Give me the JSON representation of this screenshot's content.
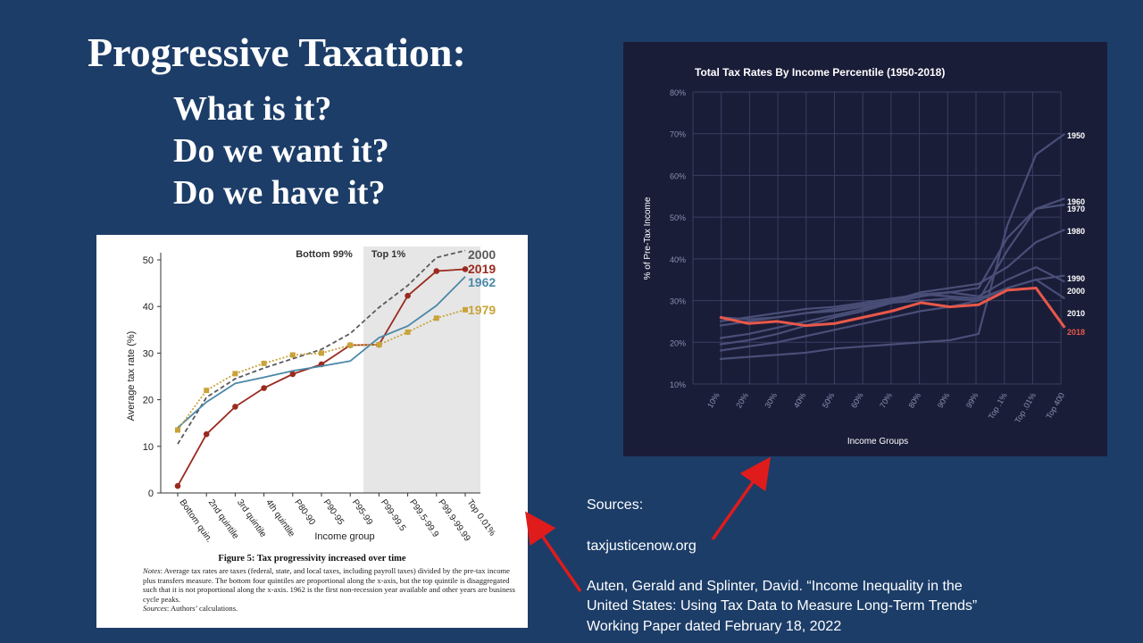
{
  "slide": {
    "title": "Progressive Taxation:",
    "questions": [
      "What is it?",
      "Do we want it?",
      "Do we have it?"
    ]
  },
  "sources": {
    "heading": "Sources:",
    "link": "taxjusticenow.org",
    "citation_lines": [
      "Auten, Gerald and Splinter, David. “Income Inequality in the",
      "United States: Using Tax Data to Measure Long-Term Trends”",
      "Working Paper dated February 18, 2022"
    ]
  },
  "left_figure": {
    "caption_title": "Figure 5: Tax progressivity increased over time",
    "notes_label": "Notes",
    "notes_text": ": Average tax rates are taxes (federal, state, and local taxes, including payroll taxes) divided by the pre-tax income plus transfers measure. The bottom four quintiles are proportional along the x-axis, but the top quintile is disaggregated such that it is not proportional along the x-axis. 1962 is the first non-recession year available and other years are business cycle peaks.",
    "sources_label": "Sources",
    "sources_text": ": Authors’ calculations."
  },
  "colors": {
    "slide_bg": "#1c3d68",
    "y2000": "#5a5a5a",
    "y2019": "#9a2a1e",
    "y1962": "#4b88a8",
    "y1979": "#c9a33a",
    "dark_panel": "#1a1d38",
    "highlight_2018": "#e8584a",
    "faint_lines": "#4a4f78",
    "arrow": "#e01b1b"
  },
  "chart_data": [
    {
      "type": "line",
      "region_labels": [
        "Bottom 99%",
        "Top 1%"
      ],
      "categories": [
        "Bottom quin.",
        "2nd quintile",
        "3rd quintile",
        "4th quintile",
        "P80-90",
        "P90-95",
        "P95-99",
        "P99-99.5",
        "P99.5-99.9",
        "P99.9-99.99",
        "Top 0.01%"
      ],
      "xlabel": "Income group",
      "ylabel": "Average tax rate (%)",
      "ylim": [
        0,
        50
      ],
      "yticks": [
        0,
        10,
        20,
        30,
        40,
        50
      ],
      "shaded_region": "Top 1%",
      "series": [
        {
          "name": "2000",
          "style": "dashed",
          "values": [
            10.5,
            20.5,
            24.5,
            26.8,
            28.8,
            30.8,
            34.2,
            39.8,
            44.5,
            50.5,
            52
          ]
        },
        {
          "name": "2019",
          "style": "solid-dots",
          "values": [
            1.5,
            12.6,
            18.5,
            22.5,
            25.5,
            27.6,
            31.7,
            31.8,
            42.3,
            47.6,
            48
          ]
        },
        {
          "name": "1962",
          "style": "solid",
          "values": [
            14,
            19.5,
            23.5,
            24.8,
            26.2,
            27.2,
            28.3,
            33.3,
            35.8,
            40.2,
            46.4
          ]
        },
        {
          "name": "1979",
          "style": "dotted-squares",
          "values": [
            13.5,
            22,
            25.6,
            27.8,
            29.6,
            30,
            31.7,
            31.8,
            34.5,
            37.5,
            39.3
          ]
        }
      ]
    },
    {
      "type": "line",
      "title": "Total Tax Rates By Income Percentile (1950-2018)",
      "xlabel": "Income Groups",
      "ylabel": "% of Pre-Tax Income",
      "ylim": [
        10,
        80
      ],
      "yticks": [
        "10%",
        "20%",
        "30%",
        "40%",
        "50%",
        "60%",
        "70%",
        "80%"
      ],
      "xticks": [
        "10%",
        "20%",
        "30%",
        "40%",
        "50%",
        "60%",
        "70%",
        "80%",
        "90%",
        "99%",
        "Top .1%",
        "Top .01%",
        "Top 400"
      ],
      "series": [
        {
          "name": "1950",
          "values": [
            16,
            16.5,
            17,
            17.5,
            18.5,
            19,
            19.5,
            20,
            20.5,
            22,
            48,
            65,
            70
          ]
        },
        {
          "name": "1960",
          "values": [
            18,
            19,
            20,
            21.5,
            23,
            24.5,
            26,
            27.5,
            28.5,
            30,
            42,
            52,
            54.5
          ]
        },
        {
          "name": "1970",
          "values": [
            19.5,
            20.5,
            22,
            24,
            26,
            27.5,
            29.5,
            31,
            32,
            33,
            45,
            52,
            53
          ]
        },
        {
          "name": "1980",
          "values": [
            21,
            22,
            23.5,
            25,
            26.5,
            28,
            30,
            32,
            33,
            34,
            38,
            44,
            47
          ]
        },
        {
          "name": "1990",
          "values": [
            24,
            25,
            26,
            27,
            28,
            29,
            30,
            31.5,
            31,
            30.5,
            33,
            35,
            36
          ]
        },
        {
          "name": "2000",
          "values": [
            25,
            26,
            27,
            28,
            28.5,
            29.5,
            30.5,
            31.5,
            32,
            31,
            35,
            38,
            34.5
          ]
        },
        {
          "name": "2010",
          "values": [
            26,
            25.5,
            26,
            27,
            27.5,
            28.5,
            29.5,
            30,
            30.5,
            30,
            33,
            35,
            30.5
          ]
        },
        {
          "name": "2018",
          "highlight": true,
          "values": [
            26,
            24.5,
            25,
            24,
            24.5,
            26,
            27.5,
            29.5,
            28.5,
            29,
            32.5,
            33,
            23.5
          ]
        }
      ]
    }
  ]
}
